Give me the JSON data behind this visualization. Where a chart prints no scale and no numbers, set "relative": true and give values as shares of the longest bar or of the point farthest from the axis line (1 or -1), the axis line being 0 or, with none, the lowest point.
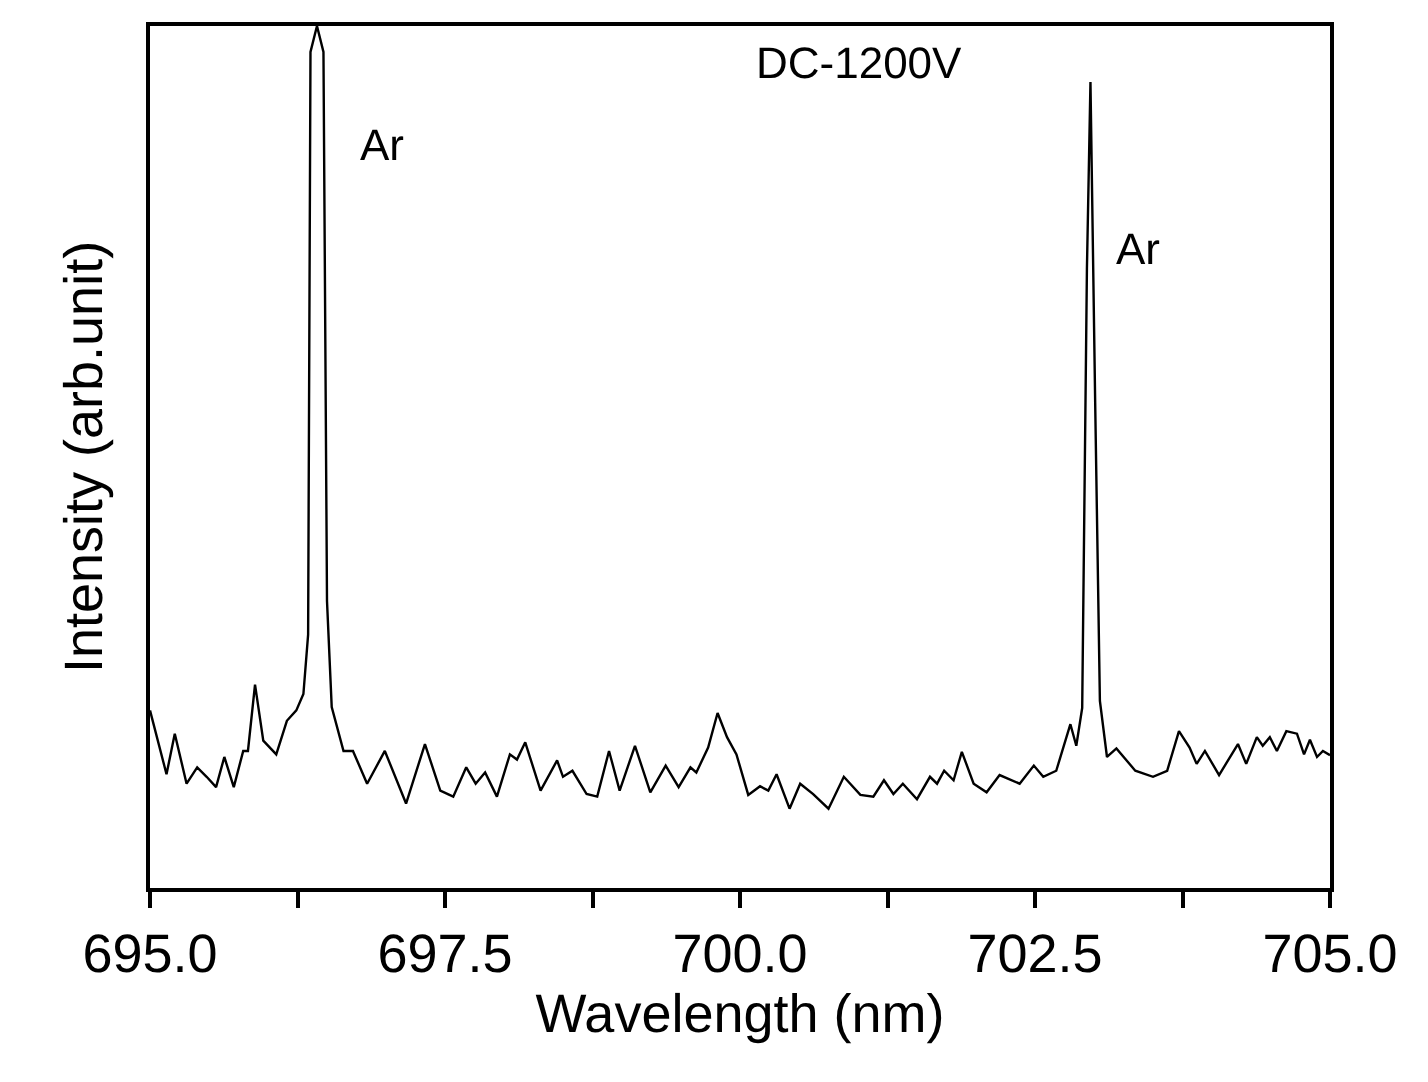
{
  "chart_data": {
    "type": "line",
    "relative": true,
    "xlabel": "Wavelength (nm)",
    "ylabel": "Intensity (arb.unit)",
    "xlim": [
      695,
      705
    ],
    "xticks": [
      {
        "value": 695,
        "label": "695.0"
      },
      {
        "value": 696.25,
        "label": null
      },
      {
        "value": 697.5,
        "label": "697.5"
      },
      {
        "value": 698.75,
        "label": null
      },
      {
        "value": 700,
        "label": "700.0"
      },
      {
        "value": 701.25,
        "label": null
      },
      {
        "value": 702.5,
        "label": "702.5"
      },
      {
        "value": 703.75,
        "label": null
      },
      {
        "value": 705,
        "label": "705.0"
      }
    ],
    "marker": "none",
    "line_style": "solid",
    "annotations": [
      "Ar",
      "DC-1200V",
      "Ar"
    ],
    "series": [
      {
        "color": "#000000",
        "x": [
          695.0,
          695.14,
          695.21,
          695.31,
          695.4,
          695.48,
          695.56,
          695.63,
          695.71,
          695.79,
          695.83,
          695.89,
          695.96,
          696.07,
          696.16,
          696.24,
          696.3,
          696.34,
          696.36,
          696.415,
          696.47,
          696.5,
          696.54,
          696.64,
          696.72,
          696.84,
          696.99,
          697.17,
          697.33,
          697.46,
          697.57,
          697.68,
          697.76,
          697.84,
          697.94,
          698.05,
          698.11,
          698.18,
          698.31,
          698.45,
          698.5,
          698.58,
          698.7,
          698.79,
          698.89,
          698.98,
          699.11,
          699.24,
          699.37,
          699.48,
          699.58,
          699.63,
          699.73,
          699.81,
          699.89,
          699.97,
          700.07,
          700.17,
          700.24,
          700.31,
          700.42,
          700.51,
          700.62,
          700.75,
          700.88,
          701.02,
          701.13,
          701.22,
          701.3,
          701.38,
          701.5,
          701.61,
          701.67,
          701.73,
          701.81,
          701.88,
          701.98,
          702.09,
          702.2,
          702.37,
          702.49,
          702.57,
          702.68,
          702.8,
          702.85,
          702.9,
          702.94,
          702.97,
          703.01,
          703.05,
          703.11,
          703.19,
          703.35,
          703.5,
          703.62,
          703.72,
          703.81,
          703.87,
          703.94,
          704.06,
          704.22,
          704.29,
          704.38,
          704.43,
          704.49,
          704.55,
          704.63,
          704.72,
          704.78,
          704.83,
          704.89,
          704.94,
          705.0
        ],
        "values": [
          0.206,
          0.132,
          0.179,
          0.121,
          0.14,
          0.129,
          0.117,
          0.152,
          0.117,
          0.159,
          0.159,
          0.236,
          0.171,
          0.155,
          0.194,
          0.206,
          0.225,
          0.294,
          0.97,
          1.0,
          0.97,
          0.333,
          0.21,
          0.159,
          0.159,
          0.121,
          0.159,
          0.098,
          0.167,
          0.113,
          0.106,
          0.14,
          0.121,
          0.134,
          0.106,
          0.155,
          0.149,
          0.169,
          0.113,
          0.148,
          0.129,
          0.136,
          0.109,
          0.106,
          0.159,
          0.113,
          0.165,
          0.111,
          0.142,
          0.117,
          0.14,
          0.134,
          0.163,
          0.203,
          0.175,
          0.155,
          0.108,
          0.118,
          0.113,
          0.132,
          0.092,
          0.121,
          0.109,
          0.092,
          0.129,
          0.108,
          0.106,
          0.125,
          0.109,
          0.121,
          0.103,
          0.129,
          0.121,
          0.136,
          0.125,
          0.158,
          0.121,
          0.111,
          0.131,
          0.121,
          0.142,
          0.129,
          0.136,
          0.19,
          0.165,
          0.209,
          0.718,
          0.935,
          0.563,
          0.217,
          0.152,
          0.162,
          0.136,
          0.129,
          0.136,
          0.182,
          0.163,
          0.144,
          0.159,
          0.131,
          0.167,
          0.144,
          0.175,
          0.165,
          0.175,
          0.159,
          0.182,
          0.179,
          0.155,
          0.172,
          0.152,
          0.159,
          0.154
        ]
      }
    ]
  }
}
